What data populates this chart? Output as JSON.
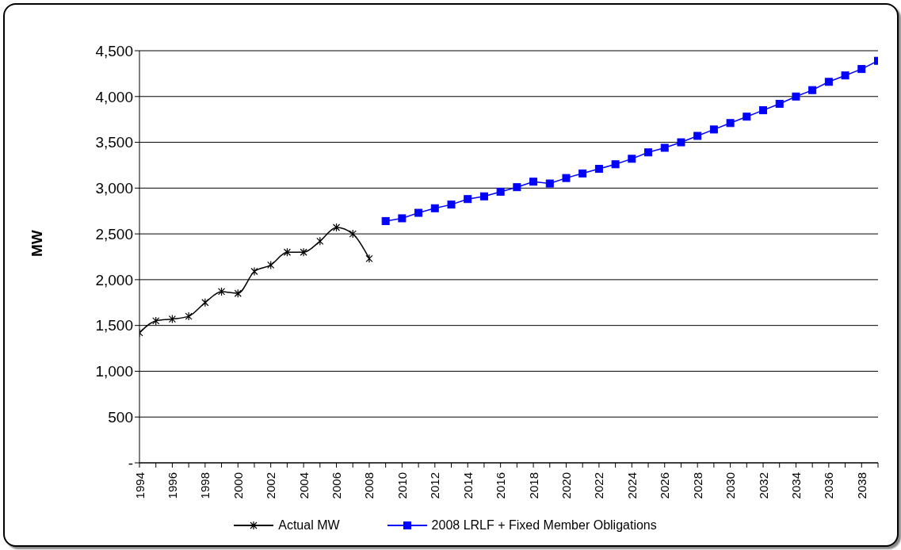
{
  "chart_data": {
    "type": "line",
    "ylabel": "MW",
    "categories": [
      "1994",
      null,
      "1996",
      null,
      "1998",
      null,
      "2000",
      null,
      "2002",
      null,
      "2004",
      null,
      "2006",
      null,
      "2008",
      null,
      "2010",
      null,
      "2012",
      null,
      "2014",
      null,
      "2016",
      null,
      "2018",
      null,
      "2020",
      null,
      "2022",
      null,
      "2024",
      null,
      "2026",
      null,
      "2028",
      null,
      "2030",
      null,
      "2032",
      null,
      "2034",
      null,
      "2036",
      null,
      "2038",
      null
    ],
    "series": [
      {
        "name": "Actual MW",
        "color": "#000000",
        "marker": "cross",
        "values": [
          1420,
          1550,
          1570,
          1600,
          1750,
          1870,
          1850,
          2090,
          2160,
          2300,
          2300,
          2420,
          2570,
          2500,
          2230,
          null,
          null,
          null,
          null,
          null,
          null,
          null,
          null,
          null,
          null,
          null,
          null,
          null,
          null,
          null,
          null,
          null,
          null,
          null,
          null,
          null,
          null,
          null,
          null,
          null,
          null,
          null,
          null,
          null,
          null,
          null
        ]
      },
      {
        "name": "2008 LRLF + Fixed Member Obligations",
        "color": "#0000ff",
        "marker": "square",
        "values": [
          null,
          null,
          null,
          null,
          null,
          null,
          null,
          null,
          null,
          null,
          null,
          null,
          null,
          null,
          null,
          2640,
          2670,
          2730,
          2780,
          2820,
          2880,
          2910,
          2960,
          3010,
          3070,
          3050,
          3110,
          3160,
          3210,
          3260,
          3320,
          3390,
          3440,
          3500,
          3570,
          3640,
          3710,
          3780,
          3850,
          3920,
          4000,
          4070,
          4160,
          4230,
          4300,
          4390
        ]
      }
    ],
    "ylim": [
      0,
      4500
    ],
    "yticks": [
      {
        "value": 0,
        "label": "-"
      },
      {
        "value": 500,
        "label": "500"
      },
      {
        "value": 1000,
        "label": "1,000"
      },
      {
        "value": 1500,
        "label": "1,500"
      },
      {
        "value": 2000,
        "label": "2,000"
      },
      {
        "value": 2500,
        "label": "2,500"
      },
      {
        "value": 3000,
        "label": "3,000"
      },
      {
        "value": 3500,
        "label": "3,500"
      },
      {
        "value": 4000,
        "label": "4,000"
      },
      {
        "value": 4500,
        "label": "4,500"
      }
    ],
    "grid": "y",
    "legend": "bottom"
  }
}
